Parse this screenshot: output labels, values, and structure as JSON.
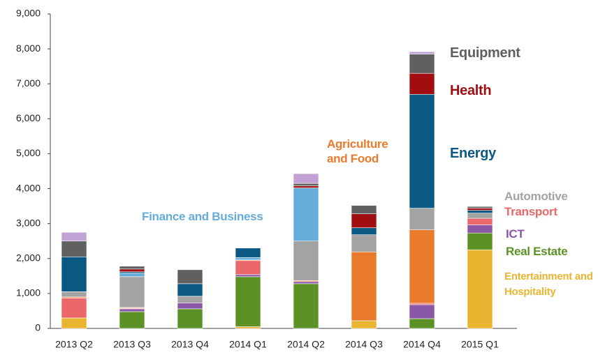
{
  "chart_data": {
    "type": "bar",
    "stacked": true,
    "categories": [
      "2013 Q2",
      "2013 Q3",
      "2013 Q4",
      "2014 Q1",
      "2014 Q2",
      "2014 Q3",
      "2014 Q4",
      "2015 Q1"
    ],
    "series": [
      {
        "name": "Entertainment and Hospitality",
        "color": "#e9b530",
        "values": [
          300,
          0,
          0,
          50,
          0,
          220,
          0,
          2250
        ]
      },
      {
        "name": "Real Estate",
        "color": "#5b9125",
        "values": [
          0,
          480,
          560,
          1430,
          1280,
          0,
          280,
          480
        ]
      },
      {
        "name": "ICT",
        "color": "#8b58a8",
        "values": [
          0,
          80,
          170,
          60,
          60,
          0,
          400,
          230
        ]
      },
      {
        "name": "Transport",
        "color": "#ea6869",
        "values": [
          570,
          20,
          0,
          400,
          0,
          0,
          40,
          190
        ]
      },
      {
        "name": "Agriculture and Food",
        "color": "#ea7a2c",
        "values": [
          30,
          20,
          0,
          20,
          30,
          1970,
          2100,
          0
        ]
      },
      {
        "name": "Automotive",
        "color": "#a3a3a3",
        "values": [
          150,
          880,
          190,
          0,
          1130,
          490,
          620,
          150
        ]
      },
      {
        "name": "Finance and Business",
        "color": "#66acd9",
        "values": [
          0,
          100,
          0,
          70,
          1520,
          0,
          0,
          0
        ]
      },
      {
        "name": "Energy",
        "color": "#0b5882",
        "values": [
          1000,
          40,
          360,
          270,
          0,
          200,
          3260,
          80
        ]
      },
      {
        "name": "Health",
        "color": "#a10e12",
        "values": [
          0,
          80,
          0,
          0,
          60,
          400,
          600,
          60
        ]
      },
      {
        "name": "Equipment",
        "color": "#606060",
        "values": [
          450,
          80,
          400,
          0,
          70,
          240,
          550,
          50
        ]
      },
      {
        "color": "#c1a2d4",
        "values": [
          250,
          0,
          0,
          0,
          280,
          0,
          70,
          0
        ]
      }
    ],
    "ylim": [
      0,
      9000
    ],
    "yticks": [
      0,
      {
        "value": 1000,
        "label": "1,000"
      },
      {
        "value": 2000,
        "label": "2,000"
      },
      {
        "value": 3000,
        "label": "3,000"
      },
      {
        "value": 4000,
        "label": "4,000"
      },
      {
        "value": 5000,
        "label": "5,000"
      },
      {
        "value": 6000,
        "label": "6,000"
      },
      {
        "value": 7000,
        "label": "7,000"
      },
      {
        "value": 8000,
        "label": "8,000"
      },
      {
        "value": 9000,
        "label": "9,000"
      }
    ]
  }
}
